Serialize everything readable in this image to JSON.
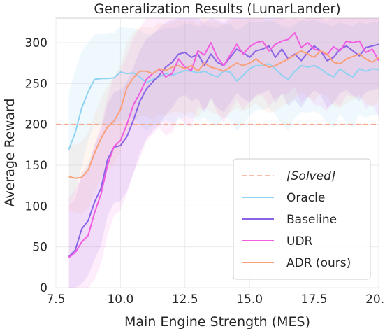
{
  "chart_data": {
    "type": "line",
    "title": "Generalization Results (LunarLander)",
    "xlabel": "Main Engine Strength (MES)",
    "ylabel": "Average Reward",
    "xlim": [
      7.5,
      20.0
    ],
    "ylim": [
      0,
      330
    ],
    "xticks": [
      "7.5",
      "10.0",
      "12.5",
      "15.0",
      "17.5",
      "20.0"
    ],
    "yticks": [
      "0",
      "50",
      "100",
      "150",
      "200",
      "250",
      "300"
    ],
    "grid": true,
    "legend_position": "lower-right",
    "solved_threshold": 200,
    "solved_label": "[Solved]",
    "x": [
      8.0,
      8.25,
      8.5,
      8.75,
      9.0,
      9.25,
      9.5,
      9.75,
      10.0,
      10.25,
      10.5,
      10.75,
      11.0,
      11.25,
      11.5,
      11.75,
      12.0,
      12.25,
      12.5,
      12.75,
      13.0,
      13.25,
      13.5,
      13.75,
      14.0,
      14.25,
      14.5,
      14.75,
      15.0,
      15.25,
      15.5,
      15.75,
      16.0,
      16.25,
      16.5,
      16.75,
      17.0,
      17.25,
      17.5,
      17.75,
      18.0,
      18.25,
      18.5,
      18.75,
      19.0,
      19.25,
      19.5,
      19.75,
      20.0
    ],
    "series": [
      {
        "name": "Oracle",
        "color": "#8fd2f2",
        "band_opacity": 0.14,
        "values": [
          169,
          190,
          220,
          240,
          255,
          256,
          256,
          257,
          264,
          262,
          263,
          258,
          251,
          255,
          258,
          262,
          260,
          263,
          266,
          265,
          263,
          265,
          261,
          258,
          265,
          264,
          253,
          260,
          268,
          272,
          272,
          274,
          268,
          260,
          255,
          265,
          272,
          270,
          272,
          268,
          262,
          258,
          268,
          262,
          258,
          268,
          265,
          268,
          267
        ],
        "upper": [
          240,
          265,
          290,
          300,
          310,
          310,
          312,
          312,
          320,
          318,
          318,
          315,
          310,
          312,
          315,
          318,
          318,
          320,
          322,
          322,
          320,
          322,
          320,
          318,
          322,
          322,
          315,
          320,
          325,
          325,
          325,
          328,
          325,
          320,
          318,
          322,
          328,
          326,
          328,
          325,
          322,
          320,
          325,
          322,
          320,
          325,
          322,
          325,
          325
        ],
        "lower": [
          100,
          115,
          150,
          180,
          200,
          200,
          198,
          200,
          205,
          205,
          208,
          200,
          192,
          198,
          200,
          205,
          202,
          205,
          210,
          208,
          205,
          208,
          202,
          198,
          208,
          206,
          192,
          200,
          210,
          218,
          218,
          220,
          212,
          200,
          192,
          208,
          215,
          214,
          216,
          212,
          202,
          196,
          212,
          202,
          196,
          212,
          208,
          212,
          210
        ]
      },
      {
        "name": "Baseline",
        "color": "#8a63e6",
        "band_opacity": 0.13,
        "values": [
          38,
          46,
          72,
          82,
          105,
          122,
          157,
          172,
          174,
          185,
          205,
          228,
          243,
          252,
          260,
          270,
          276,
          286,
          288,
          282,
          286,
          272,
          286,
          276,
          272,
          282,
          292,
          288,
          282,
          290,
          292,
          296,
          282,
          292,
          280,
          286,
          278,
          288,
          296,
          290,
          278,
          282,
          292,
          296,
          290,
          284,
          294,
          296,
          298
        ],
        "upper": [
          100,
          110,
          140,
          150,
          175,
          192,
          225,
          240,
          242,
          252,
          270,
          290,
          305,
          310,
          318,
          325,
          328,
          330,
          330,
          330,
          330,
          325,
          330,
          328,
          325,
          330,
          330,
          330,
          330,
          330,
          330,
          330,
          330,
          330,
          328,
          330,
          328,
          330,
          330,
          330,
          328,
          330,
          330,
          330,
          330,
          330,
          330,
          330,
          330
        ],
        "lower": [
          0,
          0,
          5,
          15,
          35,
          52,
          88,
          104,
          106,
          118,
          140,
          165,
          182,
          192,
          200,
          212,
          220,
          232,
          236,
          228,
          232,
          215,
          232,
          220,
          215,
          226,
          238,
          232,
          226,
          236,
          238,
          242,
          226,
          238,
          222,
          230,
          220,
          232,
          242,
          236,
          220,
          226,
          238,
          242,
          236,
          228,
          240,
          242,
          244
        ]
      },
      {
        "name": "UDR",
        "color": "#f25ce0",
        "band_opacity": 0.1,
        "values": [
          37,
          43,
          56,
          64,
          92,
          115,
          150,
          173,
          180,
          200,
          224,
          238,
          255,
          262,
          268,
          258,
          262,
          280,
          270,
          266,
          290,
          285,
          300,
          282,
          272,
          285,
          298,
          286,
          295,
          300,
          302,
          290,
          298,
          302,
          304,
          312,
          294,
          300,
          292,
          290,
          285,
          295,
          290,
          302,
          300,
          302,
          288,
          292,
          278
        ],
        "upper": [
          110,
          120,
          135,
          145,
          175,
          200,
          235,
          258,
          265,
          285,
          305,
          318,
          330,
          330,
          330,
          330,
          330,
          330,
          330,
          330,
          330,
          330,
          330,
          330,
          330,
          330,
          330,
          330,
          330,
          330,
          330,
          330,
          330,
          330,
          330,
          330,
          330,
          330,
          330,
          330,
          330,
          330,
          330,
          330,
          330,
          330,
          330,
          330,
          330
        ],
        "lower": [
          0,
          0,
          0,
          0,
          10,
          30,
          65,
          88,
          95,
          115,
          140,
          158,
          178,
          188,
          196,
          186,
          190,
          210,
          200,
          196,
          222,
          216,
          232,
          214,
          202,
          216,
          230,
          218,
          228,
          234,
          236,
          222,
          232,
          236,
          238,
          246,
          226,
          234,
          224,
          222,
          216,
          228,
          222,
          236,
          234,
          236,
          220,
          224,
          210
        ]
      },
      {
        "name": "ADR (ours)",
        "color": "#f9a07a",
        "band_opacity": 0.1,
        "values": [
          136,
          134,
          135,
          144,
          165,
          183,
          197,
          204,
          218,
          245,
          257,
          265,
          265,
          262,
          268,
          266,
          270,
          272,
          268,
          272,
          265,
          275,
          270,
          268,
          265,
          270,
          275,
          272,
          275,
          280,
          274,
          270,
          272,
          276,
          280,
          285,
          290,
          286,
          282,
          290,
          286,
          276,
          274,
          280,
          283,
          286,
          280,
          276,
          282
        ],
        "upper": [
          175,
          175,
          180,
          190,
          212,
          232,
          248,
          258,
          272,
          300,
          312,
          320,
          320,
          318,
          325,
          322,
          325,
          328,
          325,
          328,
          322,
          330,
          326,
          325,
          322,
          326,
          330,
          328,
          330,
          330,
          330,
          326,
          328,
          330,
          330,
          330,
          330,
          330,
          330,
          330,
          330,
          330,
          330,
          330,
          330,
          330,
          330,
          330,
          330
        ],
        "lower": [
          95,
          92,
          90,
          98,
          118,
          134,
          146,
          150,
          164,
          190,
          202,
          210,
          210,
          206,
          212,
          210,
          215,
          216,
          212,
          216,
          208,
          220,
          214,
          212,
          208,
          214,
          220,
          216,
          220,
          226,
          218,
          214,
          216,
          222,
          226,
          232,
          238,
          234,
          228,
          238,
          234,
          222,
          220,
          226,
          230,
          234,
          226,
          222,
          228
        ]
      }
    ]
  }
}
